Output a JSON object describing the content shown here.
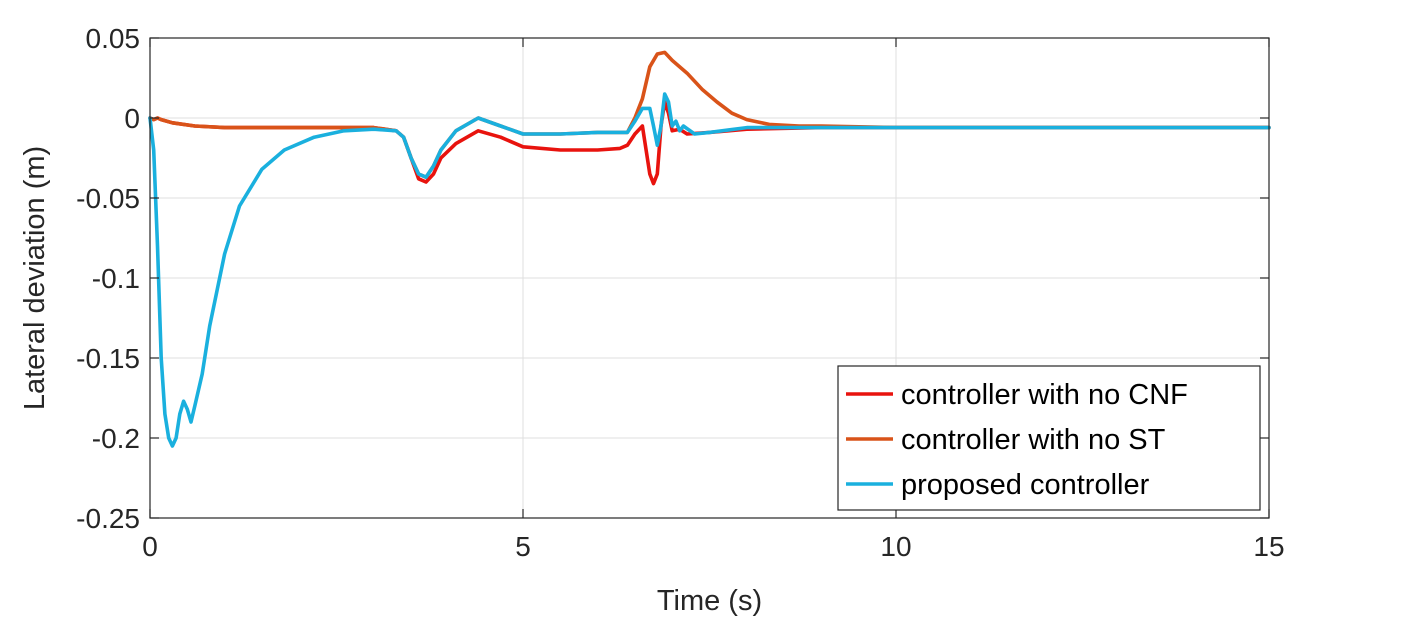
{
  "chart_data": {
    "type": "line",
    "xlabel": "Time (s)",
    "ylabel": "Lateral deviation (m)",
    "xlim": [
      0,
      15
    ],
    "ylim": [
      -0.25,
      0.05
    ],
    "xticks": [
      0,
      5,
      10,
      15
    ],
    "xtick_labels": [
      "0",
      "5",
      "10",
      "15"
    ],
    "yticks": [
      0.05,
      0,
      -0.05,
      -0.1,
      -0.15,
      -0.2,
      -0.25
    ],
    "ytick_labels": [
      "0.05",
      "0",
      "-0.05",
      "-0.1",
      "-0.15",
      "-0.2",
      "-0.25"
    ],
    "grid": true,
    "legend_position": "bottom-right",
    "series": [
      {
        "name": "controller with no CNF",
        "color": "#e8130e",
        "points": [
          [
            0,
            0
          ],
          [
            0.05,
            -0.001
          ],
          [
            0.1,
            0
          ],
          [
            0.15,
            -0.001
          ],
          [
            0.3,
            -0.003
          ],
          [
            0.6,
            -0.005
          ],
          [
            1.0,
            -0.006
          ],
          [
            2.0,
            -0.006
          ],
          [
            3.0,
            -0.006
          ],
          [
            3.3,
            -0.008
          ],
          [
            3.4,
            -0.012
          ],
          [
            3.5,
            -0.025
          ],
          [
            3.6,
            -0.038
          ],
          [
            3.7,
            -0.04
          ],
          [
            3.8,
            -0.035
          ],
          [
            3.9,
            -0.025
          ],
          [
            4.1,
            -0.016
          ],
          [
            4.4,
            -0.008
          ],
          [
            4.7,
            -0.012
          ],
          [
            5.0,
            -0.018
          ],
          [
            5.5,
            -0.02
          ],
          [
            6.0,
            -0.02
          ],
          [
            6.3,
            -0.019
          ],
          [
            6.4,
            -0.017
          ],
          [
            6.5,
            -0.01
          ],
          [
            6.6,
            -0.005
          ],
          [
            6.65,
            -0.02
          ],
          [
            6.7,
            -0.035
          ],
          [
            6.75,
            -0.041
          ],
          [
            6.8,
            -0.035
          ],
          [
            6.85,
            -0.005
          ],
          [
            6.9,
            0.01
          ],
          [
            6.95,
            0.003
          ],
          [
            7.0,
            -0.008
          ],
          [
            7.1,
            -0.007
          ],
          [
            7.2,
            -0.01
          ],
          [
            7.5,
            -0.009
          ],
          [
            8.0,
            -0.007
          ],
          [
            9.0,
            -0.006
          ],
          [
            10.0,
            -0.006
          ],
          [
            15.0,
            -0.006
          ]
        ]
      },
      {
        "name": "controller with no ST",
        "color": "#d95319",
        "points": [
          [
            0,
            0
          ],
          [
            0.05,
            -0.001
          ],
          [
            0.1,
            0
          ],
          [
            0.15,
            -0.001
          ],
          [
            0.3,
            -0.003
          ],
          [
            0.6,
            -0.005
          ],
          [
            1.0,
            -0.006
          ],
          [
            2.0,
            -0.006
          ],
          [
            3.0,
            -0.006
          ],
          [
            3.3,
            -0.008
          ],
          [
            3.4,
            -0.012
          ],
          [
            3.5,
            -0.025
          ],
          [
            3.6,
            -0.035
          ],
          [
            3.7,
            -0.037
          ],
          [
            3.8,
            -0.03
          ],
          [
            3.9,
            -0.02
          ],
          [
            4.1,
            -0.008
          ],
          [
            4.4,
            0.0
          ],
          [
            4.7,
            -0.005
          ],
          [
            5.0,
            -0.01
          ],
          [
            5.5,
            -0.01
          ],
          [
            6.0,
            -0.009
          ],
          [
            6.4,
            -0.009
          ],
          [
            6.5,
            0.0
          ],
          [
            6.6,
            0.012
          ],
          [
            6.7,
            0.032
          ],
          [
            6.8,
            0.04
          ],
          [
            6.9,
            0.041
          ],
          [
            7.0,
            0.036
          ],
          [
            7.2,
            0.028
          ],
          [
            7.4,
            0.018
          ],
          [
            7.6,
            0.01
          ],
          [
            7.8,
            0.003
          ],
          [
            8.0,
            -0.001
          ],
          [
            8.3,
            -0.004
          ],
          [
            8.7,
            -0.005
          ],
          [
            9.0,
            -0.005
          ],
          [
            10.0,
            -0.006
          ],
          [
            15.0,
            -0.006
          ]
        ]
      },
      {
        "name": "proposed controller",
        "color": "#1ab0de",
        "points": [
          [
            0,
            0
          ],
          [
            0.05,
            -0.02
          ],
          [
            0.1,
            -0.08
          ],
          [
            0.15,
            -0.15
          ],
          [
            0.2,
            -0.185
          ],
          [
            0.25,
            -0.2
          ],
          [
            0.3,
            -0.205
          ],
          [
            0.35,
            -0.2
          ],
          [
            0.4,
            -0.185
          ],
          [
            0.45,
            -0.177
          ],
          [
            0.5,
            -0.182
          ],
          [
            0.55,
            -0.19
          ],
          [
            0.6,
            -0.18
          ],
          [
            0.7,
            -0.16
          ],
          [
            0.8,
            -0.13
          ],
          [
            1.0,
            -0.085
          ],
          [
            1.2,
            -0.055
          ],
          [
            1.5,
            -0.032
          ],
          [
            1.8,
            -0.02
          ],
          [
            2.2,
            -0.012
          ],
          [
            2.6,
            -0.008
          ],
          [
            3.0,
            -0.007
          ],
          [
            3.3,
            -0.008
          ],
          [
            3.4,
            -0.012
          ],
          [
            3.5,
            -0.025
          ],
          [
            3.6,
            -0.035
          ],
          [
            3.7,
            -0.037
          ],
          [
            3.8,
            -0.03
          ],
          [
            3.9,
            -0.02
          ],
          [
            4.1,
            -0.008
          ],
          [
            4.4,
            0.0
          ],
          [
            4.7,
            -0.005
          ],
          [
            5.0,
            -0.01
          ],
          [
            5.5,
            -0.01
          ],
          [
            6.0,
            -0.009
          ],
          [
            6.4,
            -0.009
          ],
          [
            6.5,
            -0.002
          ],
          [
            6.6,
            0.006
          ],
          [
            6.7,
            0.006
          ],
          [
            6.75,
            -0.005
          ],
          [
            6.8,
            -0.017
          ],
          [
            6.85,
            -0.005
          ],
          [
            6.9,
            0.015
          ],
          [
            6.95,
            0.01
          ],
          [
            7.0,
            -0.005
          ],
          [
            7.05,
            -0.002
          ],
          [
            7.1,
            -0.008
          ],
          [
            7.15,
            -0.005
          ],
          [
            7.3,
            -0.01
          ],
          [
            7.5,
            -0.009
          ],
          [
            8.0,
            -0.006
          ],
          [
            9.0,
            -0.006
          ],
          [
            10.0,
            -0.006
          ],
          [
            15.0,
            -0.006
          ]
        ]
      }
    ]
  }
}
